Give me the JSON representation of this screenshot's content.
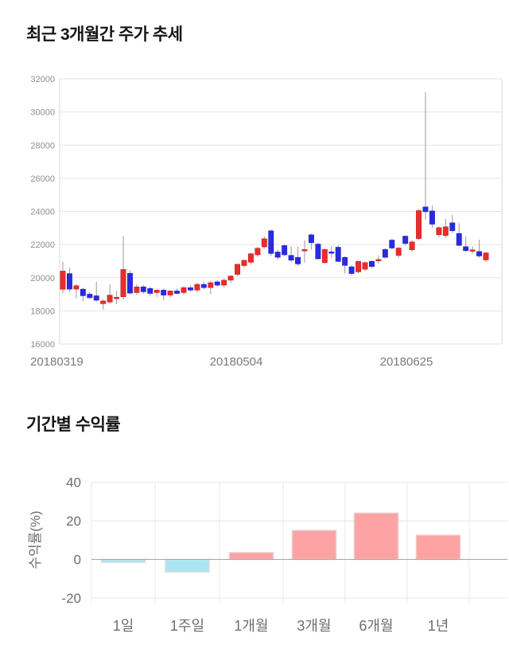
{
  "price_section": {
    "title": "최근 3개월간 주가 추세"
  },
  "returns_section": {
    "title": "기간별 수익률"
  },
  "chart_data": [
    {
      "type": "candlestick",
      "title": "최근 3개월간 주가 추세",
      "ylim": [
        16000,
        32000
      ],
      "y_ticks": [
        32000,
        30000,
        28000,
        26000,
        24000,
        22000,
        20000,
        18000,
        16000
      ],
      "x_labels": [
        "20180319",
        "20180504",
        "20180625"
      ],
      "grid": true,
      "up_color": "#ec2b2b",
      "down_color": "#2a2ae0",
      "wick_color": "#999999",
      "candles_ohlc_order": [
        "open",
        "high",
        "low",
        "close"
      ],
      "candles": [
        [
          19300,
          20950,
          19050,
          20400
        ],
        [
          20250,
          20600,
          19150,
          19310
        ],
        [
          19310,
          19600,
          18750,
          19520
        ],
        [
          19310,
          19400,
          18580,
          18910
        ],
        [
          19010,
          19150,
          18700,
          18790
        ],
        [
          18910,
          19750,
          18550,
          18640
        ],
        [
          18430,
          18700,
          18080,
          18600
        ],
        [
          18530,
          19600,
          18420,
          18950
        ],
        [
          18800,
          19200,
          18400,
          18820
        ],
        [
          18850,
          22500,
          18700,
          20500
        ],
        [
          20270,
          20450,
          19000,
          19070
        ],
        [
          19100,
          19600,
          18950,
          19450
        ],
        [
          19450,
          19550,
          19050,
          19150
        ],
        [
          19350,
          19450,
          18900,
          19050
        ],
        [
          19100,
          19300,
          18850,
          19250
        ],
        [
          19250,
          19350,
          18650,
          18950
        ],
        [
          18950,
          19250,
          18800,
          19200
        ],
        [
          19200,
          19350,
          19000,
          19050
        ],
        [
          19100,
          19500,
          19000,
          19400
        ],
        [
          19400,
          19550,
          19150,
          19250
        ],
        [
          19250,
          19700,
          19100,
          19600
        ],
        [
          19600,
          19750,
          19300,
          19400
        ],
        [
          19400,
          19800,
          19000,
          19700
        ],
        [
          19750,
          19850,
          19450,
          19550
        ],
        [
          19550,
          19950,
          19400,
          19850
        ],
        [
          19850,
          20150,
          19700,
          20100
        ],
        [
          20200,
          20850,
          20100,
          20810
        ],
        [
          20730,
          21100,
          20600,
          21050
        ],
        [
          20930,
          21500,
          20800,
          21450
        ],
        [
          21380,
          21850,
          21250,
          21780
        ],
        [
          21860,
          22500,
          21750,
          22350
        ],
        [
          22830,
          22900,
          21300,
          21460
        ],
        [
          21550,
          21700,
          21100,
          21230
        ],
        [
          21940,
          22000,
          21300,
          21380
        ],
        [
          21350,
          21900,
          20950,
          21060
        ],
        [
          21230,
          21870,
          20700,
          20830
        ],
        [
          21700,
          22270,
          20900,
          21700
        ],
        [
          22590,
          22650,
          21700,
          22110
        ],
        [
          22030,
          22100,
          21100,
          21140
        ],
        [
          20910,
          21750,
          20820,
          21710
        ],
        [
          21560,
          21900,
          21200,
          21500
        ],
        [
          21840,
          21950,
          20950,
          20980
        ],
        [
          21230,
          21300,
          20250,
          20740
        ],
        [
          20660,
          20750,
          20150,
          20250
        ],
        [
          20350,
          21050,
          20250,
          20990
        ],
        [
          20510,
          20990,
          20400,
          20910
        ],
        [
          20990,
          21050,
          20550,
          20670
        ],
        [
          21100,
          21350,
          20850,
          21100
        ],
        [
          21710,
          21800,
          21150,
          21230
        ],
        [
          22270,
          22350,
          21700,
          21790
        ],
        [
          21340,
          21850,
          21200,
          21790
        ],
        [
          22510,
          22560,
          21950,
          22060
        ],
        [
          21680,
          22250,
          21550,
          22160
        ],
        [
          22360,
          24150,
          22250,
          24050
        ],
        [
          24270,
          31200,
          23500,
          23980
        ],
        [
          24030,
          24350,
          23020,
          23230
        ],
        [
          22590,
          23100,
          22450,
          23020
        ],
        [
          22540,
          23550,
          22400,
          23070
        ],
        [
          23310,
          23790,
          22700,
          22830
        ],
        [
          22670,
          23280,
          21900,
          21950
        ],
        [
          21870,
          22500,
          21550,
          21630
        ],
        [
          21680,
          21900,
          21450,
          21680
        ],
        [
          21580,
          22300,
          21200,
          21310
        ],
        [
          21070,
          21550,
          20950,
          21500
        ]
      ]
    },
    {
      "type": "bar",
      "title": "기간별 수익률",
      "categories": [
        "1일",
        "1주일",
        "1개월",
        "3개월",
        "6개월",
        "1년"
      ],
      "values": [
        -1.5,
        -6.5,
        3.5,
        15,
        24,
        12.5
      ],
      "ylabel": "수익률(%)",
      "y_ticks": [
        40,
        20,
        0,
        -20
      ],
      "ylim": [
        -20,
        40
      ],
      "grid": true,
      "positive_color": "#fda3a3",
      "positive_border": "#eccaca",
      "negative_color": "#ace5f2",
      "negative_border": "#d6dde2"
    }
  ]
}
